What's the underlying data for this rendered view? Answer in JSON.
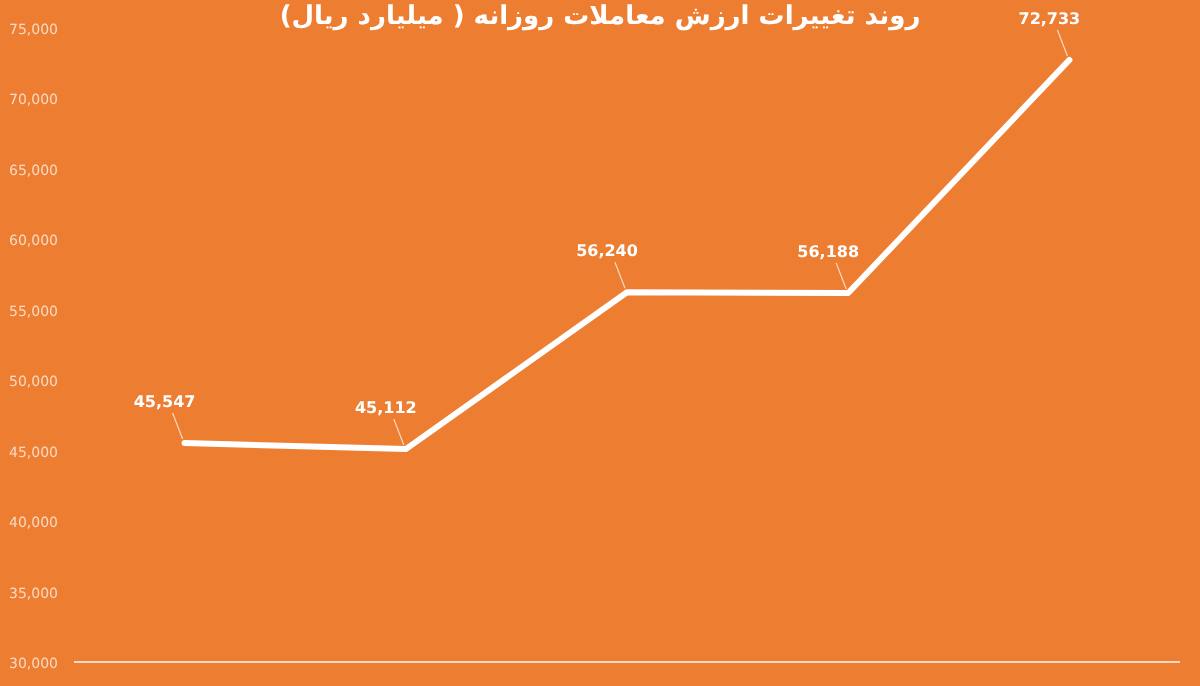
{
  "chart_data": {
    "type": "line",
    "title": "روند تغییرات ارزش معاملات روزانه ( میلیارد ریال)",
    "categories": [
      null,
      null,
      null,
      null,
      null
    ],
    "series": [
      {
        "color": "#ffffff",
        "values": [
          45547,
          45112,
          56240,
          56188,
          72733
        ],
        "value_labels": [
          "45,547",
          "45,112",
          "56,240",
          "56,188",
          "72,733"
        ]
      }
    ],
    "ylim": [
      30000,
      75000
    ],
    "yticks": [
      {
        "value": 30000,
        "label": "30,000"
      },
      {
        "value": 35000,
        "label": "35,000"
      },
      {
        "value": 40000,
        "label": "40,000"
      },
      {
        "value": 45000,
        "label": "45,000"
      },
      {
        "value": 50000,
        "label": "50,000"
      },
      {
        "value": 55000,
        "label": "55,000"
      },
      {
        "value": 60000,
        "label": "60,000"
      },
      {
        "value": 65000,
        "label": "65,000"
      },
      {
        "value": 70000,
        "label": "70,000"
      },
      {
        "value": 75000,
        "label": "75,000"
      }
    ],
    "grid": false,
    "marker": "none",
    "line_style": "solid"
  }
}
